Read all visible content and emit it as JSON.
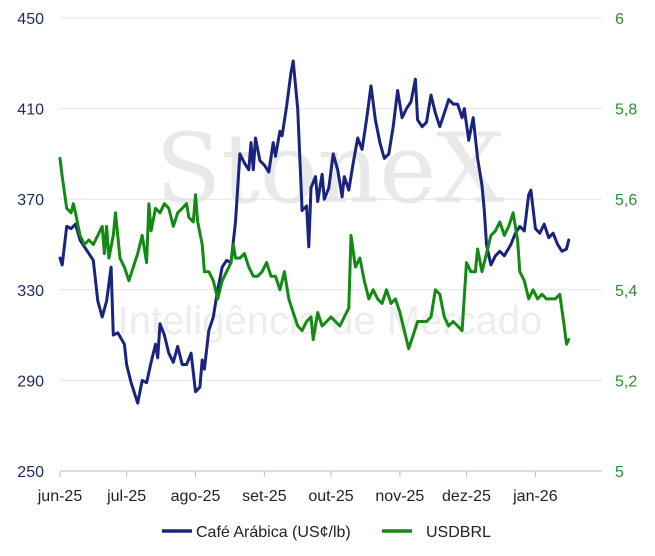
{
  "watermark": {
    "brand": "StoneX",
    "tagline": "Inteligência de Mercado"
  },
  "chart_data": {
    "type": "line",
    "title": "",
    "x_range": [
      "2025-06-01",
      "2026-01-31"
    ],
    "x_ticks": [
      {
        "date": "2025-06-01",
        "label": "jun-25"
      },
      {
        "date": "2025-07-01",
        "label": "jul-25"
      },
      {
        "date": "2025-08-01",
        "label": "ago-25"
      },
      {
        "date": "2025-09-01",
        "label": "set-25"
      },
      {
        "date": "2025-10-01",
        "label": "out-25"
      },
      {
        "date": "2025-11-01",
        "label": "nov-25"
      },
      {
        "date": "2025-12-01",
        "label": "dez-25"
      },
      {
        "date": "2026-01-01",
        "label": "jan-26"
      }
    ],
    "y_left": {
      "min": 250,
      "max": 450,
      "ticks": [
        "250",
        "290",
        "330",
        "370",
        "410",
        "450"
      ],
      "color": "#1f2a6b"
    },
    "y_right": {
      "min": 5,
      "max": 6,
      "ticks": [
        "5",
        "5,2",
        "5,4",
        "5,6",
        "5,8",
        "6"
      ],
      "color": "#2e8b2e"
    },
    "grid": "horizontal",
    "legend_position": "bottom",
    "series": [
      {
        "name": "Café Arábica (US¢/lb)",
        "axis": "left",
        "color": "#1a237e",
        "points": [
          [
            "2025-06-01",
            344
          ],
          [
            "2025-06-02",
            341
          ],
          [
            "2025-06-04",
            358
          ],
          [
            "2025-06-06",
            357
          ],
          [
            "2025-06-08",
            359
          ],
          [
            "2025-06-10",
            352
          ],
          [
            "2025-06-12",
            349
          ],
          [
            "2025-06-14",
            346
          ],
          [
            "2025-06-16",
            343
          ],
          [
            "2025-06-18",
            325
          ],
          [
            "2025-06-20",
            318
          ],
          [
            "2025-06-22",
            325
          ],
          [
            "2025-06-24",
            340
          ],
          [
            "2025-06-25",
            310
          ],
          [
            "2025-06-27",
            311
          ],
          [
            "2025-06-30",
            306
          ],
          [
            "2025-07-01",
            297
          ],
          [
            "2025-07-03",
            289
          ],
          [
            "2025-07-05",
            283
          ],
          [
            "2025-07-06",
            280
          ],
          [
            "2025-07-08",
            290
          ],
          [
            "2025-07-10",
            289
          ],
          [
            "2025-07-12",
            298
          ],
          [
            "2025-07-14",
            306
          ],
          [
            "2025-07-15",
            300
          ],
          [
            "2025-07-16",
            315
          ],
          [
            "2025-07-18",
            310
          ],
          [
            "2025-07-20",
            302
          ],
          [
            "2025-07-22",
            298
          ],
          [
            "2025-07-24",
            305
          ],
          [
            "2025-07-26",
            297
          ],
          [
            "2025-07-28",
            297
          ],
          [
            "2025-07-30",
            302
          ],
          [
            "2025-08-01",
            285
          ],
          [
            "2025-08-03",
            287
          ],
          [
            "2025-08-04",
            299
          ],
          [
            "2025-08-05",
            295
          ],
          [
            "2025-08-07",
            312
          ],
          [
            "2025-08-09",
            318
          ],
          [
            "2025-08-11",
            330
          ],
          [
            "2025-08-13",
            340
          ],
          [
            "2025-08-15",
            343
          ],
          [
            "2025-08-17",
            342
          ],
          [
            "2025-08-19",
            360
          ],
          [
            "2025-08-21",
            390
          ],
          [
            "2025-08-23",
            386
          ],
          [
            "2025-08-25",
            383
          ],
          [
            "2025-08-26",
            395
          ],
          [
            "2025-08-27",
            383
          ],
          [
            "2025-08-28",
            397
          ],
          [
            "2025-08-30",
            387
          ],
          [
            "2025-09-01",
            385
          ],
          [
            "2025-09-03",
            382
          ],
          [
            "2025-09-05",
            395
          ],
          [
            "2025-09-06",
            389
          ],
          [
            "2025-09-08",
            400
          ],
          [
            "2025-09-09",
            398
          ],
          [
            "2025-09-11",
            411
          ],
          [
            "2025-09-13",
            426
          ],
          [
            "2025-09-14",
            431
          ],
          [
            "2025-09-16",
            410
          ],
          [
            "2025-09-18",
            365
          ],
          [
            "2025-09-20",
            367
          ],
          [
            "2025-09-21",
            349
          ],
          [
            "2025-09-22",
            375
          ],
          [
            "2025-09-24",
            380
          ],
          [
            "2025-09-25",
            369
          ],
          [
            "2025-09-27",
            381
          ],
          [
            "2025-09-28",
            370
          ],
          [
            "2025-09-30",
            375
          ],
          [
            "2025-10-02",
            390
          ],
          [
            "2025-10-04",
            383
          ],
          [
            "2025-10-06",
            371
          ],
          [
            "2025-10-07",
            380
          ],
          [
            "2025-10-09",
            374
          ],
          [
            "2025-10-11",
            386
          ],
          [
            "2025-10-13",
            397
          ],
          [
            "2025-10-15",
            392
          ],
          [
            "2025-10-17",
            405
          ],
          [
            "2025-10-19",
            420
          ],
          [
            "2025-10-21",
            405
          ],
          [
            "2025-10-23",
            395
          ],
          [
            "2025-10-25",
            388
          ],
          [
            "2025-10-27",
            390
          ],
          [
            "2025-10-29",
            402
          ],
          [
            "2025-10-31",
            418
          ],
          [
            "2025-11-02",
            406
          ],
          [
            "2025-11-04",
            410
          ],
          [
            "2025-11-06",
            413
          ],
          [
            "2025-11-08",
            423
          ],
          [
            "2025-11-09",
            405
          ],
          [
            "2025-11-11",
            402
          ],
          [
            "2025-11-13",
            404
          ],
          [
            "2025-11-15",
            416
          ],
          [
            "2025-11-17",
            408
          ],
          [
            "2025-11-19",
            402
          ],
          [
            "2025-11-21",
            408
          ],
          [
            "2025-11-23",
            414
          ],
          [
            "2025-11-25",
            412
          ],
          [
            "2025-11-27",
            412
          ],
          [
            "2025-11-29",
            406
          ],
          [
            "2025-11-30",
            410
          ],
          [
            "2025-12-02",
            396
          ],
          [
            "2025-12-04",
            406
          ],
          [
            "2025-12-06",
            388
          ],
          [
            "2025-12-08",
            376
          ],
          [
            "2025-12-09",
            365
          ],
          [
            "2025-12-10",
            350
          ],
          [
            "2025-12-12",
            341
          ],
          [
            "2025-12-14",
            345
          ],
          [
            "2025-12-16",
            347
          ],
          [
            "2025-12-18",
            345
          ],
          [
            "2025-12-21",
            350
          ],
          [
            "2025-12-23",
            355
          ],
          [
            "2025-12-25",
            358
          ],
          [
            "2025-12-27",
            356
          ],
          [
            "2025-12-29",
            372
          ],
          [
            "2025-12-30",
            374
          ],
          [
            "2026-01-01",
            357
          ],
          [
            "2026-01-03",
            355
          ],
          [
            "2026-01-05",
            359
          ],
          [
            "2026-01-07",
            353
          ],
          [
            "2026-01-09",
            355
          ],
          [
            "2026-01-11",
            350
          ],
          [
            "2026-01-13",
            347
          ],
          [
            "2026-01-15",
            348
          ],
          [
            "2026-01-16",
            352
          ]
        ]
      },
      {
        "name": "USDBRL",
        "axis": "right",
        "color": "#138a13",
        "points": [
          [
            "2025-06-01",
            5.69
          ],
          [
            "2025-06-02",
            5.65
          ],
          [
            "2025-06-04",
            5.58
          ],
          [
            "2025-06-06",
            5.57
          ],
          [
            "2025-06-07",
            5.59
          ],
          [
            "2025-06-08",
            5.57
          ],
          [
            "2025-06-10",
            5.52
          ],
          [
            "2025-06-12",
            5.5
          ],
          [
            "2025-06-14",
            5.51
          ],
          [
            "2025-06-16",
            5.5
          ],
          [
            "2025-06-18",
            5.52
          ],
          [
            "2025-06-20",
            5.54
          ],
          [
            "2025-06-21",
            5.48
          ],
          [
            "2025-06-22",
            5.54
          ],
          [
            "2025-06-23",
            5.47
          ],
          [
            "2025-06-25",
            5.52
          ],
          [
            "2025-06-26",
            5.57
          ],
          [
            "2025-06-28",
            5.47
          ],
          [
            "2025-06-30",
            5.45
          ],
          [
            "2025-07-02",
            5.42
          ],
          [
            "2025-07-04",
            5.45
          ],
          [
            "2025-07-06",
            5.48
          ],
          [
            "2025-07-08",
            5.52
          ],
          [
            "2025-07-10",
            5.46
          ],
          [
            "2025-07-11",
            5.59
          ],
          [
            "2025-07-12",
            5.53
          ],
          [
            "2025-07-14",
            5.58
          ],
          [
            "2025-07-16",
            5.57
          ],
          [
            "2025-07-18",
            5.59
          ],
          [
            "2025-07-20",
            5.58
          ],
          [
            "2025-07-22",
            5.54
          ],
          [
            "2025-07-24",
            5.57
          ],
          [
            "2025-07-26",
            5.58
          ],
          [
            "2025-07-28",
            5.59
          ],
          [
            "2025-07-29",
            5.56
          ],
          [
            "2025-07-31",
            5.55
          ],
          [
            "2025-08-01",
            5.61
          ],
          [
            "2025-08-02",
            5.55
          ],
          [
            "2025-08-04",
            5.5
          ],
          [
            "2025-08-05",
            5.44
          ],
          [
            "2025-08-07",
            5.44
          ],
          [
            "2025-08-09",
            5.42
          ],
          [
            "2025-08-11",
            5.38
          ],
          [
            "2025-08-13",
            5.42
          ],
          [
            "2025-08-15",
            5.44
          ],
          [
            "2025-08-17",
            5.46
          ],
          [
            "2025-08-18",
            5.5
          ],
          [
            "2025-08-19",
            5.47
          ],
          [
            "2025-08-21",
            5.47
          ],
          [
            "2025-08-23",
            5.48
          ],
          [
            "2025-08-25",
            5.45
          ],
          [
            "2025-08-27",
            5.43
          ],
          [
            "2025-08-29",
            5.43
          ],
          [
            "2025-08-31",
            5.44
          ],
          [
            "2025-09-02",
            5.46
          ],
          [
            "2025-09-04",
            5.43
          ],
          [
            "2025-09-06",
            5.43
          ],
          [
            "2025-09-08",
            5.4
          ],
          [
            "2025-09-10",
            5.44
          ],
          [
            "2025-09-12",
            5.38
          ],
          [
            "2025-09-14",
            5.35
          ],
          [
            "2025-09-16",
            5.32
          ],
          [
            "2025-09-18",
            5.31
          ],
          [
            "2025-09-20",
            5.33
          ],
          [
            "2025-09-22",
            5.34
          ],
          [
            "2025-09-23",
            5.29
          ],
          [
            "2025-09-25",
            5.35
          ],
          [
            "2025-09-27",
            5.32
          ],
          [
            "2025-09-29",
            5.33
          ],
          [
            "2025-10-01",
            5.34
          ],
          [
            "2025-10-03",
            5.33
          ],
          [
            "2025-10-05",
            5.32
          ],
          [
            "2025-10-07",
            5.34
          ],
          [
            "2025-10-09",
            5.36
          ],
          [
            "2025-10-10",
            5.52
          ],
          [
            "2025-10-12",
            5.45
          ],
          [
            "2025-10-14",
            5.47
          ],
          [
            "2025-10-16",
            5.42
          ],
          [
            "2025-10-18",
            5.38
          ],
          [
            "2025-10-20",
            5.4
          ],
          [
            "2025-10-22",
            5.38
          ],
          [
            "2025-10-24",
            5.37
          ],
          [
            "2025-10-26",
            5.4
          ],
          [
            "2025-10-28",
            5.37
          ],
          [
            "2025-10-30",
            5.38
          ],
          [
            "2025-11-01",
            5.35
          ],
          [
            "2025-11-03",
            5.31
          ],
          [
            "2025-11-05",
            5.27
          ],
          [
            "2025-11-07",
            5.3
          ],
          [
            "2025-11-09",
            5.33
          ],
          [
            "2025-11-11",
            5.33
          ],
          [
            "2025-11-13",
            5.33
          ],
          [
            "2025-11-15",
            5.34
          ],
          [
            "2025-11-17",
            5.4
          ],
          [
            "2025-11-19",
            5.39
          ],
          [
            "2025-11-21",
            5.34
          ],
          [
            "2025-11-23",
            5.32
          ],
          [
            "2025-11-25",
            5.33
          ],
          [
            "2025-11-27",
            5.32
          ],
          [
            "2025-11-29",
            5.31
          ],
          [
            "2025-12-01",
            5.46
          ],
          [
            "2025-12-03",
            5.44
          ],
          [
            "2025-12-05",
            5.44
          ],
          [
            "2025-12-06",
            5.49
          ],
          [
            "2025-12-08",
            5.44
          ],
          [
            "2025-12-10",
            5.48
          ],
          [
            "2025-12-12",
            5.52
          ],
          [
            "2025-12-14",
            5.53
          ],
          [
            "2025-12-16",
            5.55
          ],
          [
            "2025-12-18",
            5.52
          ],
          [
            "2025-12-20",
            5.54
          ],
          [
            "2025-12-22",
            5.57
          ],
          [
            "2025-12-24",
            5.51
          ],
          [
            "2025-12-25",
            5.44
          ],
          [
            "2025-12-27",
            5.42
          ],
          [
            "2025-12-29",
            5.38
          ],
          [
            "2025-12-31",
            5.4
          ],
          [
            "2026-01-02",
            5.38
          ],
          [
            "2026-01-04",
            5.39
          ],
          [
            "2026-01-06",
            5.38
          ],
          [
            "2026-01-08",
            5.38
          ],
          [
            "2026-01-10",
            5.38
          ],
          [
            "2026-01-12",
            5.39
          ],
          [
            "2026-01-14",
            5.32
          ],
          [
            "2026-01-15",
            5.28
          ],
          [
            "2026-01-16",
            5.29
          ]
        ]
      }
    ]
  }
}
